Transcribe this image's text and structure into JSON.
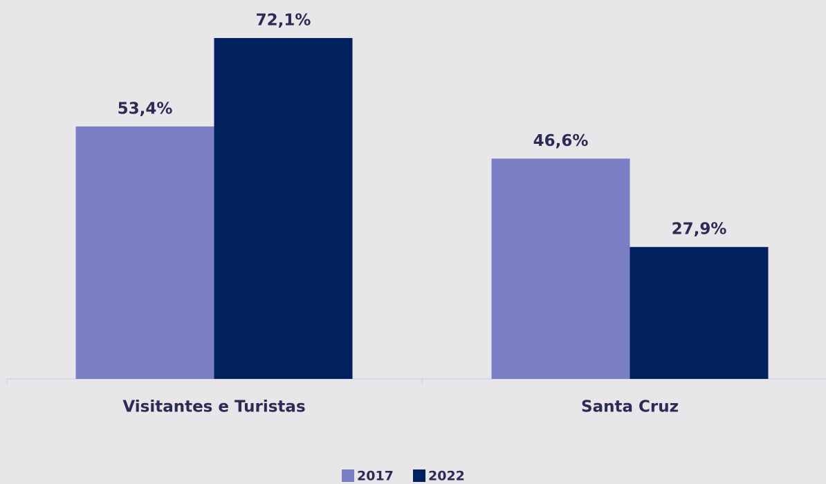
{
  "chart_data": {
    "type": "bar",
    "categories": [
      "Visitantes e Turistas",
      "Santa Cruz"
    ],
    "series": [
      {
        "name": "2017",
        "color": "#7a7fc4",
        "values": [
          53.4,
          46.6
        ],
        "value_labels": [
          "53,4%",
          "46,6%"
        ]
      },
      {
        "name": "2022",
        "color": "#00205e",
        "values": [
          72.1,
          27.9
        ],
        "value_labels": [
          "72,1%",
          "27,9%"
        ]
      }
    ],
    "ylim": [
      0,
      80
    ],
    "legend": "bottom"
  }
}
